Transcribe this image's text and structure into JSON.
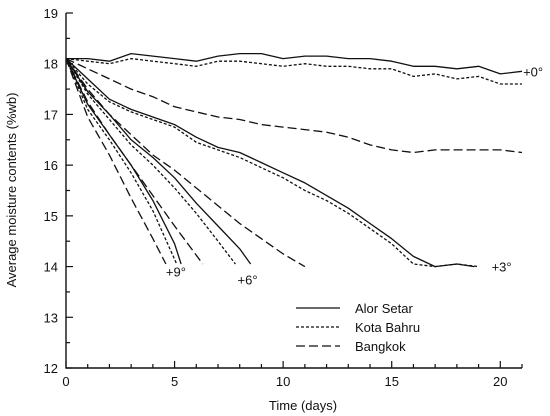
{
  "chart_data": {
    "type": "line",
    "xlabel": "Time (days)",
    "ylabel": "Average moisture contents (%wb)",
    "xlim": [
      0,
      21
    ],
    "ylim": [
      12,
      19
    ],
    "xticks": [
      0,
      5,
      10,
      15,
      20
    ],
    "yticks": [
      12,
      13,
      14,
      15,
      16,
      17,
      18,
      19
    ],
    "grid": false,
    "legend_position": "lower-right",
    "legend": [
      {
        "label": "Alor Setar",
        "style": "solid"
      },
      {
        "label": "Kota Bahru",
        "style": "short-dash"
      },
      {
        "label": "Bangkok",
        "style": "long-dash"
      }
    ],
    "annotations": [
      {
        "text": "+0°",
        "x": 21.05,
        "y": 17.85
      },
      {
        "text": "+3°",
        "x": 19.6,
        "y": 14.0
      },
      {
        "text": "+6°",
        "x": 7.9,
        "y": 13.75
      },
      {
        "text": "+9°",
        "x": 4.6,
        "y": 13.9
      }
    ],
    "series": [
      {
        "group": "+0°",
        "style": "solid",
        "x": [
          0,
          1,
          2,
          3,
          4,
          5,
          6,
          7,
          8,
          9,
          10,
          11,
          12,
          13,
          14,
          15,
          16,
          17,
          18,
          19,
          20,
          21
        ],
        "y": [
          18.1,
          18.1,
          18.05,
          18.2,
          18.15,
          18.1,
          18.05,
          18.15,
          18.2,
          18.2,
          18.1,
          18.15,
          18.15,
          18.1,
          18.1,
          18.05,
          17.95,
          17.95,
          17.9,
          17.95,
          17.8,
          17.85
        ]
      },
      {
        "group": "+0°",
        "style": "short-dash",
        "x": [
          0,
          1,
          2,
          3,
          4,
          5,
          6,
          7,
          8,
          9,
          10,
          11,
          12,
          13,
          14,
          15,
          16,
          17,
          18,
          19,
          20,
          21
        ],
        "y": [
          18.1,
          18.05,
          18.0,
          18.1,
          18.05,
          18.0,
          17.95,
          18.05,
          18.05,
          18.0,
          17.95,
          18.0,
          17.95,
          17.95,
          17.9,
          17.9,
          17.75,
          17.8,
          17.7,
          17.75,
          17.6,
          17.6
        ]
      },
      {
        "group": "+0°",
        "style": "long-dash",
        "x": [
          0,
          1,
          2,
          3,
          4,
          5,
          6,
          7,
          8,
          9,
          10,
          11,
          12,
          13,
          14,
          15,
          16,
          17,
          18,
          19,
          20,
          21
        ],
        "y": [
          18.1,
          17.9,
          17.7,
          17.5,
          17.35,
          17.15,
          17.05,
          16.95,
          16.9,
          16.8,
          16.75,
          16.7,
          16.65,
          16.55,
          16.4,
          16.3,
          16.25,
          16.3,
          16.3,
          16.3,
          16.3,
          16.25
        ]
      },
      {
        "group": "+3°",
        "style": "solid",
        "x": [
          0,
          1,
          2,
          3,
          4,
          5,
          6,
          7,
          8,
          9,
          10,
          11,
          12,
          13,
          14,
          15,
          16,
          17,
          18,
          18.8
        ],
        "y": [
          18.1,
          17.7,
          17.3,
          17.1,
          16.95,
          16.8,
          16.55,
          16.35,
          16.25,
          16.05,
          15.85,
          15.65,
          15.4,
          15.15,
          14.85,
          14.55,
          14.2,
          14.0,
          14.05,
          14.0
        ]
      },
      {
        "group": "+3°",
        "style": "short-dash",
        "x": [
          0,
          1,
          2,
          3,
          4,
          5,
          6,
          7,
          8,
          9,
          10,
          11,
          12,
          13,
          14,
          15,
          16,
          17,
          18,
          19
        ],
        "y": [
          18.1,
          17.6,
          17.25,
          17.05,
          16.9,
          16.75,
          16.45,
          16.3,
          16.15,
          15.95,
          15.75,
          15.5,
          15.3,
          15.05,
          14.75,
          14.45,
          14.05,
          14.0,
          14.05,
          14.0
        ]
      },
      {
        "group": "+3°",
        "style": "long-dash",
        "x": [
          0,
          1,
          2,
          3,
          4,
          5,
          6,
          7,
          8,
          9,
          10,
          11
        ],
        "y": [
          18.1,
          17.5,
          17.0,
          16.6,
          16.2,
          15.9,
          15.55,
          15.2,
          14.85,
          14.55,
          14.25,
          14.0
        ]
      },
      {
        "group": "+6°",
        "style": "solid",
        "x": [
          0,
          1,
          2,
          3,
          4,
          5,
          6,
          7,
          8,
          8.5
        ],
        "y": [
          18.1,
          17.45,
          17.0,
          16.5,
          16.15,
          15.75,
          15.25,
          14.8,
          14.35,
          14.05
        ]
      },
      {
        "group": "+6°",
        "style": "short-dash",
        "x": [
          0,
          1,
          2,
          3,
          4,
          5,
          6,
          7,
          7.8
        ],
        "y": [
          18.1,
          17.4,
          16.9,
          16.4,
          16.0,
          15.55,
          15.05,
          14.5,
          14.05
        ]
      },
      {
        "group": "+6°",
        "style": "long-dash",
        "x": [
          0,
          1,
          2,
          3,
          4,
          5,
          6.3
        ],
        "y": [
          18.1,
          17.25,
          16.6,
          16.0,
          15.4,
          14.8,
          14.05
        ]
      },
      {
        "group": "+9°",
        "style": "solid",
        "x": [
          0,
          1,
          2,
          3,
          4,
          5,
          5.3
        ],
        "y": [
          18.1,
          17.2,
          16.6,
          16.0,
          15.3,
          14.45,
          14.05
        ]
      },
      {
        "group": "+9°",
        "style": "short-dash",
        "x": [
          0,
          1,
          2,
          3,
          4,
          5.1
        ],
        "y": [
          18.1,
          17.1,
          16.5,
          15.85,
          15.1,
          14.05
        ]
      },
      {
        "group": "+9°",
        "style": "long-dash",
        "x": [
          0,
          1,
          2,
          3,
          4,
          4.6
        ],
        "y": [
          18.1,
          16.95,
          16.2,
          15.35,
          14.55,
          14.05
        ]
      }
    ]
  }
}
